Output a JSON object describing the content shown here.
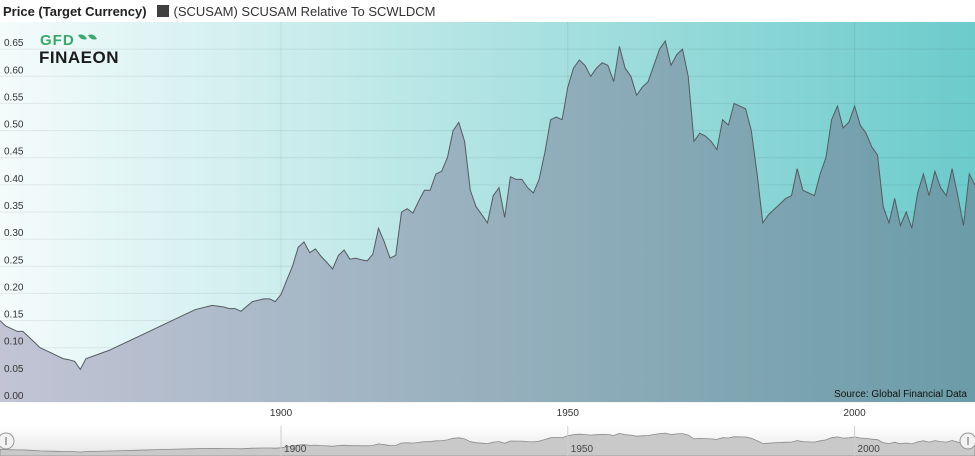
{
  "header": {
    "title": "Price (Target Currency)",
    "series_label": "(SCUSAM) SCUSAM Relative To SCWLDCM",
    "series_color": "#404040"
  },
  "logo": {
    "line1": "GFD",
    "line2": "FINAEON"
  },
  "source": "Source: Global Financial Data",
  "colors": {
    "plot_bg_left": "#f4fbfb",
    "plot_bg_right": "#6ccbcb",
    "area_fill_left": "#c2c4d4",
    "area_fill_right": "#6b9ca8",
    "line": "#555a60",
    "logo_accent": "#3aa86b"
  },
  "chart_data": {
    "type": "area",
    "title": "",
    "xlabel": "",
    "ylabel": "",
    "ylim": [
      0,
      0.7
    ],
    "xlim": [
      1851,
      2021
    ],
    "y_ticks": [
      "0.00",
      "0.05",
      "0.10",
      "0.15",
      "0.20",
      "0.25",
      "0.30",
      "0.35",
      "0.40",
      "0.45",
      "0.50",
      "0.55",
      "0.60",
      "0.65"
    ],
    "x_ticks": [
      "1900",
      "1950",
      "2000"
    ],
    "navigator_ticks": [
      "1900",
      "1950",
      "2000"
    ],
    "grid": true,
    "series": [
      {
        "name": "(SCUSAM) SCUSAM Relative To SCWLDCM",
        "x": [
          1851,
          1852,
          1853,
          1854,
          1855,
          1856,
          1857,
          1858,
          1859,
          1860,
          1861,
          1862,
          1863,
          1864,
          1865,
          1866,
          1870,
          1875,
          1880,
          1885,
          1888,
          1890,
          1891,
          1892,
          1893,
          1895,
          1897,
          1898,
          1899,
          1900,
          1901,
          1902,
          1903,
          1904,
          1905,
          1906,
          1907,
          1908,
          1909,
          1910,
          1911,
          1912,
          1913,
          1914,
          1915,
          1916,
          1917,
          1918,
          1919,
          1920,
          1921,
          1922,
          1923,
          1924,
          1925,
          1926,
          1927,
          1928,
          1929,
          1930,
          1931,
          1932,
          1933,
          1934,
          1935,
          1936,
          1937,
          1938,
          1939,
          1940,
          1941,
          1942,
          1943,
          1944,
          1945,
          1946,
          1947,
          1948,
          1949,
          1950,
          1951,
          1952,
          1953,
          1954,
          1955,
          1956,
          1957,
          1958,
          1959,
          1960,
          1961,
          1962,
          1963,
          1964,
          1965,
          1966,
          1967,
          1968,
          1969,
          1970,
          1971,
          1972,
          1973,
          1974,
          1975,
          1976,
          1977,
          1978,
          1979,
          1980,
          1981,
          1982,
          1983,
          1984,
          1985,
          1986,
          1987,
          1988,
          1989,
          1990,
          1991,
          1992,
          1993,
          1994,
          1995,
          1996,
          1997,
          1998,
          1999,
          2000,
          2001,
          2002,
          2003,
          2004,
          2005,
          2006,
          2007,
          2008,
          2009,
          2010,
          2011,
          2012,
          2013,
          2014,
          2015,
          2016,
          2017,
          2018,
          2019,
          2020,
          2021
        ],
        "y": [
          0.15,
          0.14,
          0.135,
          0.13,
          0.13,
          0.12,
          0.11,
          0.1,
          0.095,
          0.09,
          0.085,
          0.08,
          0.078,
          0.075,
          0.06,
          0.08,
          0.095,
          0.12,
          0.145,
          0.17,
          0.178,
          0.175,
          0.172,
          0.172,
          0.167,
          0.185,
          0.19,
          0.19,
          0.185,
          0.198,
          0.225,
          0.25,
          0.285,
          0.295,
          0.275,
          0.282,
          0.268,
          0.257,
          0.245,
          0.27,
          0.28,
          0.263,
          0.265,
          0.262,
          0.26,
          0.272,
          0.32,
          0.295,
          0.265,
          0.27,
          0.35,
          0.356,
          0.348,
          0.37,
          0.39,
          0.39,
          0.42,
          0.425,
          0.45,
          0.5,
          0.515,
          0.48,
          0.39,
          0.36,
          0.345,
          0.33,
          0.38,
          0.395,
          0.34,
          0.415,
          0.41,
          0.41,
          0.395,
          0.385,
          0.41,
          0.46,
          0.52,
          0.525,
          0.52,
          0.58,
          0.615,
          0.63,
          0.62,
          0.6,
          0.615,
          0.625,
          0.62,
          0.59,
          0.655,
          0.615,
          0.6,
          0.565,
          0.58,
          0.59,
          0.62,
          0.65,
          0.665,
          0.62,
          0.64,
          0.65,
          0.6,
          0.48,
          0.495,
          0.49,
          0.48,
          0.465,
          0.52,
          0.51,
          0.55,
          0.545,
          0.54,
          0.5,
          0.42,
          0.33,
          0.345,
          0.355,
          0.365,
          0.375,
          0.38,
          0.43,
          0.39,
          0.385,
          0.38,
          0.42,
          0.45,
          0.52,
          0.545,
          0.505,
          0.515,
          0.545,
          0.51,
          0.495,
          0.47,
          0.455,
          0.36,
          0.33,
          0.375,
          0.325,
          0.35,
          0.32,
          0.385,
          0.42,
          0.38,
          0.425,
          0.395,
          0.38,
          0.43,
          0.38,
          0.325,
          0.42,
          0.4
        ]
      }
    ]
  }
}
